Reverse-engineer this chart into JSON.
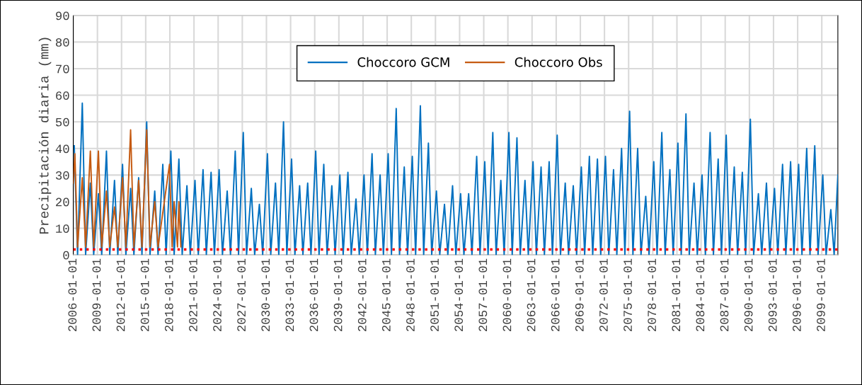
{
  "chart_data": {
    "type": "line",
    "ylabel": "Precipitación diaria (mm)",
    "ylim": [
      0,
      90
    ],
    "yticks": [
      0,
      10,
      20,
      30,
      40,
      50,
      60,
      70,
      80,
      90
    ],
    "xlim": [
      "2006-01-01",
      "2100-12-31"
    ],
    "xticks": [
      "2006-01-01",
      "2009-01-01",
      "2012-01-01",
      "2015-01-01",
      "2018-01-01",
      "2021-01-01",
      "2024-01-01",
      "2027-01-01",
      "2030-01-01",
      "2033-01-01",
      "2036-01-01",
      "2039-01-01",
      "2042-01-01",
      "2045-01-01",
      "2048-01-01",
      "2051-01-01",
      "2054-01-01",
      "2057-01-01",
      "2060-01-01",
      "2063-01-01",
      "2066-01-01",
      "2069-01-01",
      "2072-01-01",
      "2075-01-01",
      "2078-01-01",
      "2081-01-01",
      "2084-01-01",
      "2087-01-01",
      "2090-01-01",
      "2093-01-01",
      "2096-01-01",
      "2099-01-01"
    ],
    "grid": true,
    "legend": "top",
    "marker": "none",
    "line_style": "solid",
    "ref_lines": [
      {
        "axis": "y",
        "value": 2,
        "label": null,
        "color": "#ff0000",
        "line_style": "dotted"
      }
    ],
    "series": [
      {
        "name": "Choccoro GCM",
        "color": "#0070c0",
        "x": [
          "2006-02-15",
          "2006-07-15",
          "2007-02-15",
          "2007-07-15",
          "2008-02-15",
          "2008-07-15",
          "2009-02-15",
          "2009-07-15",
          "2010-02-15",
          "2010-07-15",
          "2011-02-15",
          "2011-07-15",
          "2012-02-15",
          "2012-07-15",
          "2013-02-15",
          "2013-07-15",
          "2014-02-15",
          "2014-07-15",
          "2015-02-15",
          "2015-07-15",
          "2016-02-15",
          "2016-07-15",
          "2017-02-15",
          "2017-07-15",
          "2018-02-15",
          "2018-07-15",
          "2019-02-15",
          "2019-07-15",
          "2020-02-15",
          "2020-07-15",
          "2021-02-15",
          "2021-07-15",
          "2022-02-15",
          "2022-07-15",
          "2023-02-15",
          "2023-07-15",
          "2024-02-15",
          "2024-07-15",
          "2025-02-15",
          "2025-07-15",
          "2026-02-15",
          "2026-07-15",
          "2027-02-15",
          "2027-07-15",
          "2028-02-15",
          "2028-07-15",
          "2029-02-15",
          "2029-07-15",
          "2030-02-15",
          "2030-07-15",
          "2031-02-15",
          "2031-07-15",
          "2032-02-15",
          "2032-07-15",
          "2033-02-15",
          "2033-07-15",
          "2034-02-15",
          "2034-07-15",
          "2035-02-15",
          "2035-07-15",
          "2036-02-15",
          "2036-07-15",
          "2037-02-15",
          "2037-07-15",
          "2038-02-15",
          "2038-07-15",
          "2039-02-15",
          "2039-07-15",
          "2040-02-15",
          "2040-07-15",
          "2041-02-15",
          "2041-07-15",
          "2042-02-15",
          "2042-07-15",
          "2043-02-15",
          "2043-07-15",
          "2044-02-15",
          "2044-07-15",
          "2045-02-15",
          "2045-07-15",
          "2046-02-15",
          "2046-07-15",
          "2047-02-15",
          "2047-07-15",
          "2048-02-15",
          "2048-07-15",
          "2049-02-15",
          "2049-07-15",
          "2050-02-15",
          "2050-07-15",
          "2051-02-15",
          "2051-07-15",
          "2052-02-15",
          "2052-07-15",
          "2053-02-15",
          "2053-07-15",
          "2054-02-15",
          "2054-07-15",
          "2055-02-15",
          "2055-07-15",
          "2056-02-15",
          "2056-07-15",
          "2057-02-15",
          "2057-07-15",
          "2058-02-15",
          "2058-07-15",
          "2059-02-15",
          "2059-07-15",
          "2060-02-15",
          "2060-07-15",
          "2061-02-15",
          "2061-07-15",
          "2062-02-15",
          "2062-07-15",
          "2063-02-15",
          "2063-07-15",
          "2064-02-15",
          "2064-07-15",
          "2065-02-15",
          "2065-07-15",
          "2066-02-15",
          "2066-07-15",
          "2067-02-15",
          "2067-07-15",
          "2068-02-15",
          "2068-07-15",
          "2069-02-15",
          "2069-07-15",
          "2070-02-15",
          "2070-07-15",
          "2071-02-15",
          "2071-07-15",
          "2072-02-15",
          "2072-07-15",
          "2073-02-15",
          "2073-07-15",
          "2074-02-15",
          "2074-07-15",
          "2075-02-15",
          "2075-07-15",
          "2076-02-15",
          "2076-07-15",
          "2077-02-15",
          "2077-07-15",
          "2078-02-15",
          "2078-07-15",
          "2079-02-15",
          "2079-07-15",
          "2080-02-15",
          "2080-07-15",
          "2081-02-15",
          "2081-07-15",
          "2082-02-15",
          "2082-07-15",
          "2083-02-15",
          "2083-07-15",
          "2084-02-15",
          "2084-07-15",
          "2085-02-15",
          "2085-07-15",
          "2086-02-15",
          "2086-07-15",
          "2087-02-15",
          "2087-07-15",
          "2088-02-15",
          "2088-07-15",
          "2089-02-15",
          "2089-07-15",
          "2090-02-15",
          "2090-07-15",
          "2091-02-15",
          "2091-07-15",
          "2092-02-15",
          "2092-07-15",
          "2093-02-15",
          "2093-07-15",
          "2094-02-15",
          "2094-07-15",
          "2095-02-15",
          "2095-07-15",
          "2096-02-15",
          "2096-07-15",
          "2097-02-15",
          "2097-07-15",
          "2098-02-15",
          "2098-07-15",
          "2099-02-15",
          "2099-07-15",
          "2100-02-15",
          "2100-07-15",
          "2100-12-31"
        ],
        "values": [
          41,
          0,
          57,
          0,
          27,
          0,
          23,
          0,
          39,
          0,
          28,
          0,
          34,
          0,
          25,
          0,
          29,
          0,
          50,
          0,
          24,
          0,
          34,
          0,
          39,
          0,
          36,
          0,
          26,
          0,
          28,
          0,
          32,
          0,
          31,
          0,
          32,
          0,
          24,
          0,
          39,
          0,
          46,
          0,
          25,
          0,
          19,
          0,
          38,
          0,
          27,
          0,
          50,
          0,
          36,
          0,
          26,
          0,
          27,
          0,
          39,
          0,
          34,
          0,
          26,
          0,
          30,
          0,
          31,
          0,
          21,
          0,
          30,
          0,
          38,
          0,
          30,
          0,
          38,
          0,
          55,
          0,
          33,
          0,
          37,
          0,
          56,
          0,
          42,
          0,
          24,
          0,
          19,
          0,
          26,
          0,
          23,
          0,
          23,
          0,
          37,
          0,
          35,
          0,
          46,
          0,
          28,
          0,
          46,
          0,
          44,
          0,
          28,
          0,
          35,
          0,
          33,
          0,
          35,
          0,
          45,
          0,
          27,
          0,
          26,
          0,
          33,
          0,
          37,
          0,
          36,
          0,
          37,
          0,
          32,
          0,
          40,
          0,
          54,
          0,
          40,
          0,
          22,
          0,
          35,
          0,
          46,
          0,
          32,
          0,
          42,
          0,
          53,
          0,
          27,
          0,
          30,
          0,
          46,
          0,
          36,
          0,
          45,
          0,
          33,
          0,
          31,
          0,
          51,
          0,
          23,
          0,
          27,
          0,
          25,
          0,
          34,
          0,
          35,
          0,
          34,
          0,
          40,
          0,
          41,
          0,
          30,
          0,
          17,
          0,
          30
        ]
      },
      {
        "name": "Choccoro Obs",
        "color": "#c55a11",
        "x": [
          "2006-01-01",
          "2006-03-15",
          "2006-07-15",
          "2007-02-15",
          "2007-07-15",
          "2008-02-15",
          "2008-07-15",
          "2009-02-15",
          "2009-07-15",
          "2010-02-15",
          "2010-07-15",
          "2011-02-15",
          "2011-07-15",
          "2012-02-15",
          "2012-07-15",
          "2013-02-15",
          "2013-07-15",
          "2014-02-15",
          "2014-07-15",
          "2015-02-15",
          "2015-07-15",
          "2016-02-15",
          "2016-07-15",
          "2017-12-15",
          "2018-04-15",
          "2018-07-15",
          "2018-12-15",
          "2019-02-15",
          "2019-05-15"
        ],
        "values": [
          27,
          38,
          3,
          29,
          3,
          39,
          3,
          39,
          3,
          24,
          3,
          18,
          3,
          29,
          3,
          47,
          3,
          28,
          3,
          47,
          3,
          20,
          3,
          34,
          3,
          20,
          3,
          20,
          3
        ]
      }
    ]
  }
}
